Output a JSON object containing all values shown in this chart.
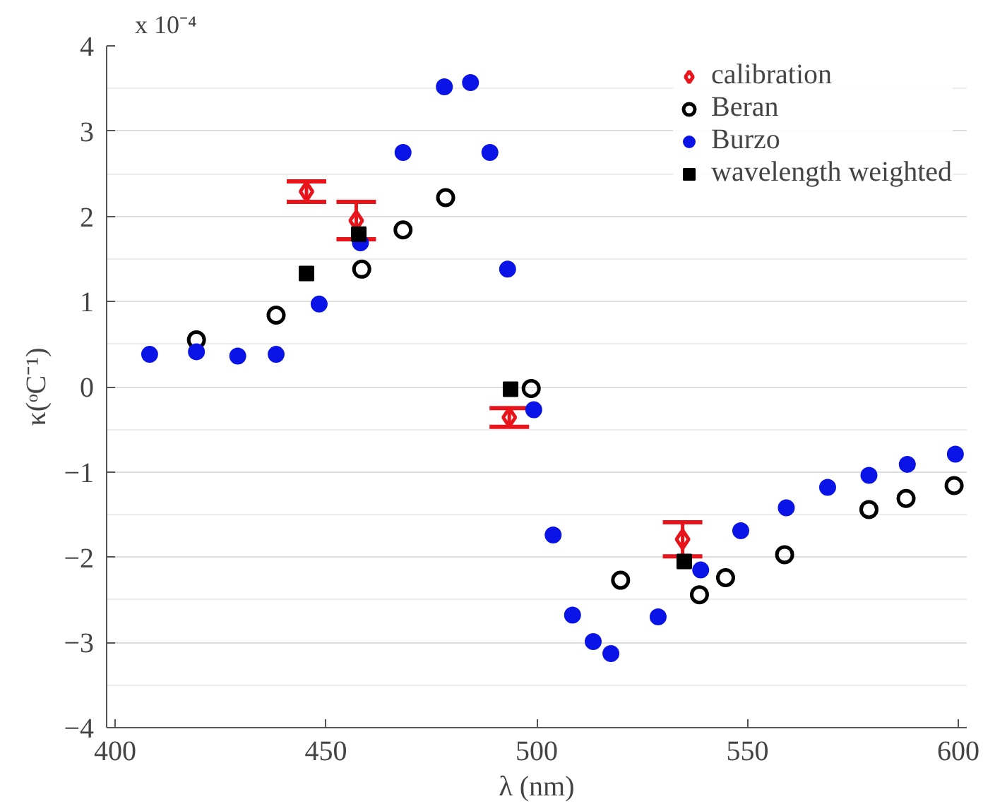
{
  "chart_data": {
    "type": "scatter",
    "xlabel": "λ (nm)",
    "ylabel": "κ(ᵒC⁻¹)",
    "annotations": [
      "x 10⁻⁴"
    ],
    "xlim": [
      398,
      602
    ],
    "xticks": [
      400,
      450,
      500,
      550,
      600
    ],
    "ylim": [
      -4,
      4
    ],
    "yticks": [
      -4,
      -3,
      -2,
      -1,
      0,
      1,
      2,
      3,
      4
    ],
    "grid": true,
    "legend": "top right",
    "series": [
      {
        "name": "calibration",
        "color": "#e8141c",
        "marker": "diamond",
        "x": [
          445.4,
          457.2,
          493.5,
          534.6
        ],
        "values": [
          2.29,
          1.95,
          -0.36,
          -1.79
        ],
        "errors": [
          0.12,
          0.22,
          0.11,
          0.2
        ]
      },
      {
        "name": "Beran",
        "color": "#000000",
        "marker": "circle",
        "x": [
          419.3,
          438.2,
          458.5,
          468.3,
          478.4,
          498.7,
          519.9,
          538.6,
          544.8,
          558.8,
          578.8,
          587.6,
          599.0
        ],
        "values": [
          0.55,
          0.84,
          1.38,
          1.84,
          2.22,
          -0.02,
          -2.27,
          -2.44,
          -2.24,
          -1.97,
          -1.44,
          -1.31,
          -1.16
        ]
      },
      {
        "name": "Burzo",
        "color": "#0a14e6",
        "marker": "circle",
        "x": [
          408.2,
          419.3,
          429.1,
          438.2,
          448.4,
          458.2,
          468.3,
          478.1,
          484.3,
          488.9,
          493.1,
          499.3,
          503.9,
          508.5,
          513.4,
          517.6,
          528.8,
          538.9,
          548.4,
          559.2,
          569.0,
          578.8,
          587.9,
          599.3
        ],
        "values": [
          0.38,
          0.41,
          0.36,
          0.38,
          0.97,
          1.69,
          2.75,
          3.52,
          3.57,
          2.75,
          1.38,
          -0.27,
          -1.74,
          -2.68,
          -2.99,
          -3.13,
          -2.7,
          -2.15,
          -1.69,
          -1.42,
          -1.18,
          -1.04,
          -0.91,
          -0.79
        ]
      },
      {
        "name": "wavelength weighted",
        "color": "#000000",
        "marker": "square",
        "x": [
          445.4,
          457.8,
          493.8,
          535.0
        ],
        "values": [
          1.33,
          1.79,
          -0.03,
          -2.05
        ]
      }
    ]
  }
}
